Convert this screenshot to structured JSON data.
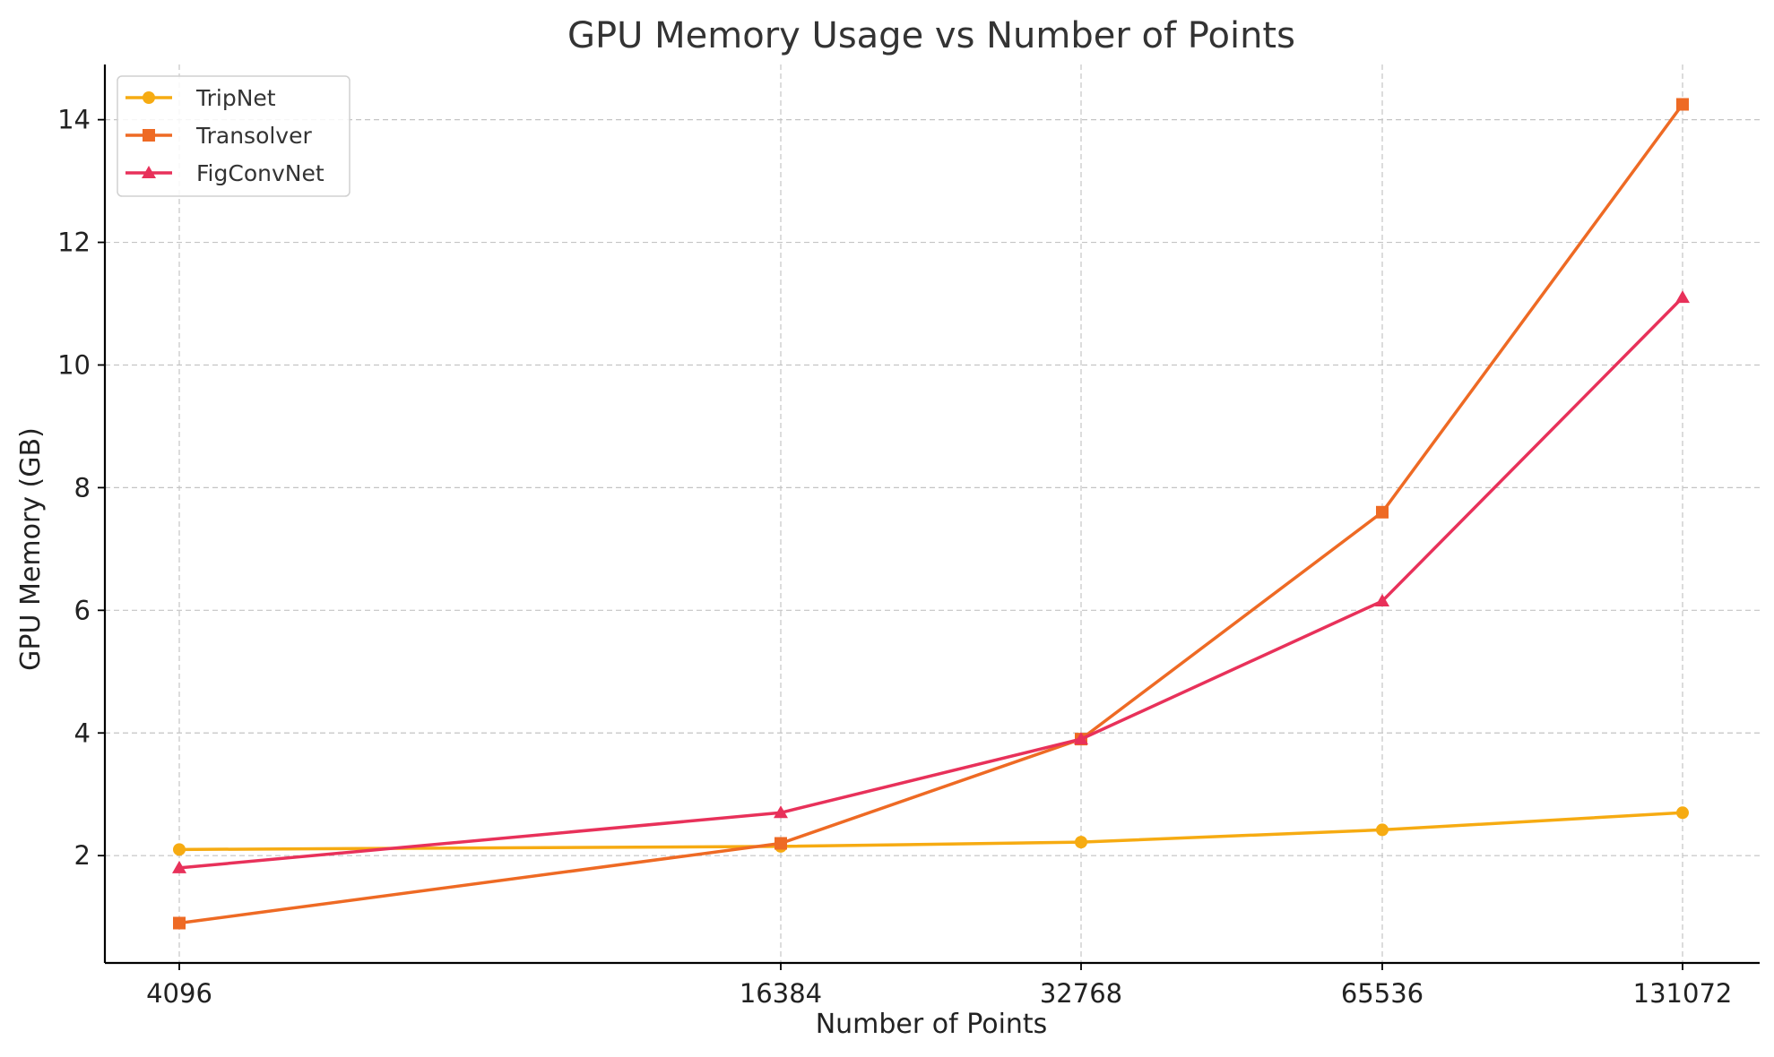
{
  "chart_data": {
    "type": "line",
    "title": "GPU Memory Usage vs Number of Points",
    "xlabel": "Number of Points",
    "ylabel": "GPU Memory (GB)",
    "x_scale": "log2",
    "categories": [
      "4096",
      "16384",
      "32768",
      "65536",
      "131072"
    ],
    "x": [
      4096,
      16384,
      32768,
      65536,
      131072
    ],
    "ylim": [
      0.25,
      14.9
    ],
    "yticks": [
      2,
      4,
      6,
      8,
      10,
      12,
      14
    ],
    "grid": true,
    "legend_position": "top-left",
    "series": [
      {
        "name": "TripNet",
        "values": [
          2.1,
          2.15,
          2.22,
          2.42,
          2.7
        ],
        "color": "#f6ab12",
        "marker": "circle"
      },
      {
        "name": "Transolver",
        "values": [
          0.9,
          2.2,
          3.9,
          7.6,
          14.25
        ],
        "color": "#ee6a24",
        "marker": "square"
      },
      {
        "name": "FigConvNet",
        "values": [
          1.8,
          2.7,
          3.9,
          6.15,
          11.1
        ],
        "color": "#e8315a",
        "marker": "triangle"
      }
    ]
  }
}
